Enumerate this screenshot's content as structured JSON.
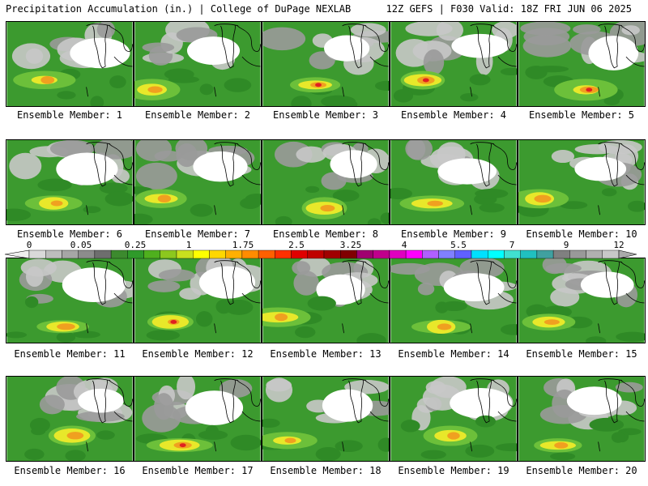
{
  "header": {
    "left": "Precipitation Accumulation (in.) | College of DuPage NEXLAB",
    "right": "12Z GEFS | F030 Valid: 18Z FRI JUN 06 2025"
  },
  "panels": [
    {
      "label": "Ensemble Member: 1"
    },
    {
      "label": "Ensemble Member: 2"
    },
    {
      "label": "Ensemble Member: 3"
    },
    {
      "label": "Ensemble Member: 4"
    },
    {
      "label": "Ensemble Member: 5"
    },
    {
      "label": "Ensemble Member: 6"
    },
    {
      "label": "Ensemble Member: 7"
    },
    {
      "label": "Ensemble Member: 8"
    },
    {
      "label": "Ensemble Member: 9"
    },
    {
      "label": "Ensemble Member: 10"
    },
    {
      "label": "Ensemble Member: 11"
    },
    {
      "label": "Ensemble Member: 12"
    },
    {
      "label": "Ensemble Member: 13"
    },
    {
      "label": "Ensemble Member: 14"
    },
    {
      "label": "Ensemble Member: 15"
    },
    {
      "label": "Ensemble Member: 16"
    },
    {
      "label": "Ensemble Member: 17"
    },
    {
      "label": "Ensemble Member: 18"
    },
    {
      "label": "Ensemble Member: 19"
    },
    {
      "label": "Ensemble Member: 20"
    }
  ],
  "legend": {
    "labels": [
      "0",
      "0.05",
      "0.25",
      "1",
      "1.75",
      "2.5",
      "3.25",
      "4",
      "5.5",
      "7",
      "9",
      "12"
    ],
    "colors": [
      "#d9d9d9",
      "#bdbdbd",
      "#a6a6a6",
      "#8c8c8c",
      "#6e6e6e",
      "#3c8a2e",
      "#2f9a2a",
      "#4fb01e",
      "#8cc81e",
      "#c8e01e",
      "#ffff00",
      "#ffd700",
      "#ffb000",
      "#ff8c00",
      "#ff6000",
      "#ff3000",
      "#e00000",
      "#c00000",
      "#a00000",
      "#800000",
      "#a00070",
      "#c0008c",
      "#e000c0",
      "#ff00ff",
      "#b060ff",
      "#8080ff",
      "#6060ff",
      "#00e0ff",
      "#00ffff",
      "#40e0d0",
      "#20c0c0",
      "#40a0a0",
      "#808080",
      "#999999",
      "#b0b0b0",
      "#c8c8c8"
    ]
  },
  "colors": {
    "green": "#3c9a2f",
    "dark_green": "#2f8a26",
    "light_green": "#6cc03a",
    "yellow": "#e8e82a",
    "orange": "#f0a020",
    "red": "#e02020",
    "gray": "#9a9a9a",
    "light_gray": "#c8c8c8",
    "white": "#ffffff"
  }
}
